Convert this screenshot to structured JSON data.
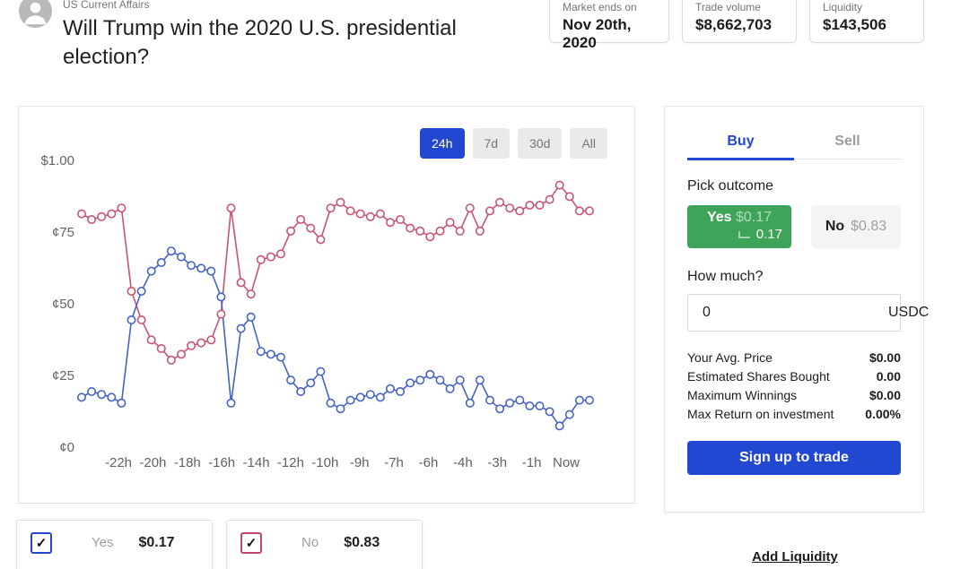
{
  "header": {
    "category": "US Current Affairs",
    "title": "Will Trump win the 2020 U.S. presidential election?",
    "stats": [
      {
        "label": "Market ends on",
        "value": "Nov 20th, 2020"
      },
      {
        "label": "Trade volume",
        "value": "$8,662,703"
      },
      {
        "label": "Liquidity",
        "value": "$143,506"
      }
    ]
  },
  "chart": {
    "ranges": [
      {
        "label": "24h",
        "active": true
      },
      {
        "label": "7d",
        "active": false
      },
      {
        "label": "30d",
        "active": false
      },
      {
        "label": "All",
        "active": false
      }
    ]
  },
  "chart_data": {
    "type": "line",
    "x_labels": [
      "-22h",
      "-20h",
      "-18h",
      "-16h",
      "-14h",
      "-12h",
      "-10h",
      "-9h",
      "-7h",
      "-6h",
      "-4h",
      "-3h",
      "-1h",
      "Now"
    ],
    "y_ticks": [
      {
        "value": 100,
        "label": "$1.00"
      },
      {
        "value": 75,
        "label": "¢75"
      },
      {
        "value": 50,
        "label": "¢50"
      },
      {
        "value": 25,
        "label": "¢25"
      },
      {
        "value": 0,
        "label": "¢0"
      }
    ],
    "ylim": [
      0,
      100
    ],
    "unit": "cents",
    "grid": false,
    "legend_position": "none",
    "point_style": "open-circle",
    "series": [
      {
        "name": "No",
        "color": "#c95471",
        "values": [
          82,
          80,
          81,
          82,
          84,
          55,
          45,
          38,
          35,
          31,
          33,
          36,
          37,
          38,
          47,
          84,
          58,
          54,
          66,
          67,
          68,
          76,
          80,
          77,
          73,
          84,
          86,
          83,
          82,
          81,
          82,
          79,
          80,
          77,
          76,
          74,
          76,
          79,
          76,
          84,
          76,
          83,
          86,
          84,
          83,
          85,
          85,
          87,
          92,
          88,
          83,
          83
        ]
      },
      {
        "name": "Yes",
        "color": "#4663c4",
        "values": [
          18,
          20,
          19,
          18,
          16,
          45,
          55,
          62,
          65,
          69,
          67,
          64,
          63,
          62,
          53,
          16,
          42,
          46,
          34,
          33,
          32,
          24,
          20,
          23,
          27,
          16,
          14,
          17,
          18,
          19,
          18,
          21,
          20,
          23,
          24,
          26,
          24,
          21,
          24,
          16,
          24,
          17,
          14,
          16,
          17,
          15,
          15,
          13,
          8,
          12,
          17,
          17
        ]
      }
    ]
  },
  "trade_panel": {
    "tabs": {
      "buy": "Buy",
      "sell": "Sell"
    },
    "pick_outcome_label": "Pick outcome",
    "outcomes": {
      "yes": {
        "name": "Yes",
        "price": "$0.17",
        "shares_value": "0.17"
      },
      "no": {
        "name": "No",
        "price": "$0.83"
      }
    },
    "how_much_label": "How much?",
    "amount": {
      "value": "0",
      "currency": "USDC"
    },
    "summary": [
      {
        "label": "Your Avg. Price",
        "value": "$0.00"
      },
      {
        "label": "Estimated Shares Bought",
        "value": "0.00"
      },
      {
        "label": "Maximum Winnings",
        "value": "$0.00"
      },
      {
        "label": "Max Return on investment",
        "value": "0.00%"
      }
    ],
    "cta_label": "Sign up to trade"
  },
  "positions": [
    {
      "name": "Yes",
      "price": "$0.17",
      "checked": true,
      "accent": "#2446cf"
    },
    {
      "name": "No",
      "price": "$0.83",
      "checked": true,
      "accent": "#c4456b"
    }
  ],
  "footer": {
    "add_liquidity": "Add Liquidity"
  },
  "icons": {
    "checkmark": "✓"
  },
  "colors": {
    "accent_blue": "#2248d1",
    "green_yes": "#3ea45a",
    "line_yes_blue": "#4663c4",
    "line_no_red": "#c95471",
    "text_dark": "#212121",
    "text_gray": "#757575",
    "border": "#e0e0e0"
  }
}
